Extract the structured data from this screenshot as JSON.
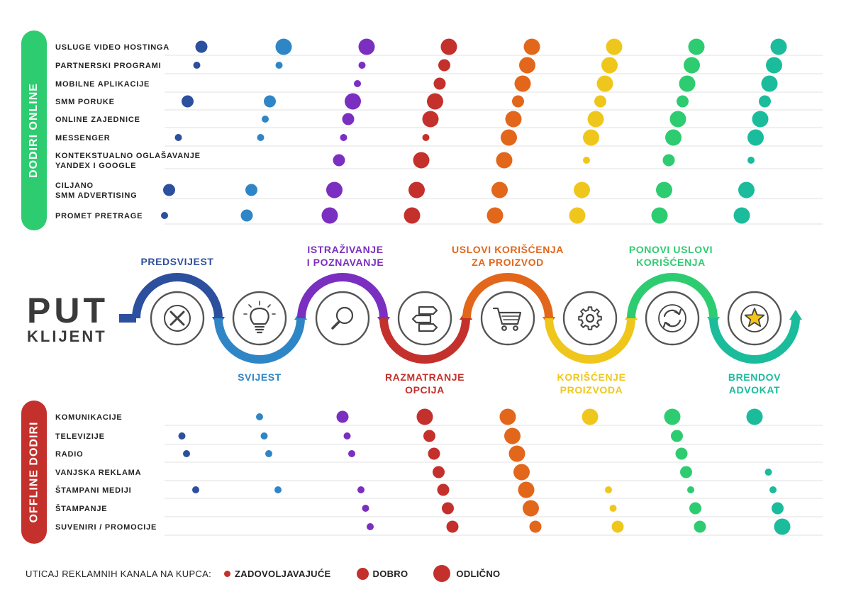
{
  "journey_title": {
    "big": "PUT",
    "small": "KLIJENT"
  },
  "online_section": {
    "title": "DODIRI ONLINE",
    "color": "#2ecc71"
  },
  "offline_section": {
    "title": "OFFLINE DODIRI",
    "color": "#c4302b"
  },
  "stages": [
    {
      "lines": [
        "PREDSVIJEST"
      ],
      "color": "#2c4f9e",
      "icon": "close-x-icon"
    },
    {
      "lines": [
        "SVIJEST"
      ],
      "color": "#2f86c6",
      "icon": "lightbulb-icon"
    },
    {
      "lines": [
        "ISTRAŽIVANJE",
        "I POZNAVANJE"
      ],
      "color": "#7b2fc0",
      "icon": "search-icon"
    },
    {
      "lines": [
        "RAZMATRANJE",
        "OPCIJA"
      ],
      "color": "#c4302b",
      "icon": "signpost-icon"
    },
    {
      "lines": [
        "USLOVI KORIŠĆENJA",
        "ZA PROIZVOD"
      ],
      "color": "#e2671b",
      "icon": "cart-icon"
    },
    {
      "lines": [
        "KORIŠĆENJE",
        "PROIZVODA"
      ],
      "color": "#efc71c",
      "icon": "gear-icon"
    },
    {
      "lines": [
        "PONOVI USLOVI",
        "KORIŠĆENJA"
      ],
      "color": "#2ecc71",
      "icon": "refresh-icon"
    },
    {
      "lines": [
        "BRENDOV",
        "ADVOKAT"
      ],
      "color": "#1abc9c",
      "icon": "star-icon"
    }
  ],
  "online_rows": [
    {
      "lines": [
        "USLUGE VIDEO HOSTINGA"
      ],
      "impact": [
        2,
        3,
        3,
        3,
        3,
        3,
        3,
        3
      ]
    },
    {
      "lines": [
        "PARTNERSKI PROGRAMI"
      ],
      "impact": [
        1,
        1,
        1,
        2,
        3,
        3,
        3,
        3
      ]
    },
    {
      "lines": [
        "MOBILNE APLIKACIJE"
      ],
      "impact": [
        0,
        0,
        1,
        2,
        3,
        3,
        3,
        3
      ]
    },
    {
      "lines": [
        "SMM PORUKE"
      ],
      "impact": [
        2,
        2,
        3,
        3,
        2,
        2,
        2,
        2
      ]
    },
    {
      "lines": [
        "ONLINE ZAJEDNICE"
      ],
      "impact": [
        0,
        1,
        2,
        3,
        3,
        3,
        3,
        3
      ]
    },
    {
      "lines": [
        "MESSENGER"
      ],
      "impact": [
        1,
        1,
        1,
        1,
        3,
        3,
        3,
        3
      ]
    },
    {
      "lines": [
        "KONTEKSTUALNO OGLAŠAVANJE",
        "YANDEX I GOOGLE"
      ],
      "impact": [
        0,
        0,
        2,
        3,
        3,
        1,
        2,
        1
      ]
    },
    {
      "lines": [
        "CILJANO",
        "SMM ADVERTISING"
      ],
      "impact": [
        2,
        2,
        3,
        3,
        3,
        3,
        3,
        3
      ]
    },
    {
      "lines": [
        "PROMET PRETRAGE"
      ],
      "impact": [
        1,
        2,
        3,
        3,
        3,
        3,
        3,
        3
      ]
    }
  ],
  "offline_rows": [
    {
      "lines": [
        "KOMUNIKACIJE"
      ],
      "impact": [
        0,
        1,
        2,
        3,
        3,
        3,
        3,
        3
      ]
    },
    {
      "lines": [
        "TELEVIZIJE"
      ],
      "impact": [
        1,
        1,
        1,
        2,
        3,
        0,
        2,
        0
      ]
    },
    {
      "lines": [
        "RADIO"
      ],
      "impact": [
        1,
        1,
        1,
        2,
        3,
        0,
        2,
        0
      ]
    },
    {
      "lines": [
        "VANJSKA REKLAMA"
      ],
      "impact": [
        0,
        0,
        0,
        2,
        3,
        0,
        2,
        1
      ]
    },
    {
      "lines": [
        "ŠTAMPANI MEDIJI"
      ],
      "impact": [
        1,
        1,
        1,
        2,
        3,
        1,
        1,
        1
      ]
    },
    {
      "lines": [
        "ŠTAMPANJE"
      ],
      "impact": [
        0,
        0,
        1,
        2,
        3,
        1,
        2,
        2
      ]
    },
    {
      "lines": [
        "SUVENIRI / PROMOCIJE"
      ],
      "impact": [
        0,
        0,
        1,
        2,
        2,
        2,
        2,
        3
      ]
    }
  ],
  "legend": {
    "title": "UTICAJ REKLAMNIH KANALA NA KUPCA:",
    "levels": [
      {
        "label": "ZADOVOLJAVAJUĆE",
        "level": 1
      },
      {
        "label": "DOBRO",
        "level": 2
      },
      {
        "label": "ODLIČNO",
        "level": 3
      }
    ],
    "color": "#c4302b"
  },
  "line_color": "#e8e8e8",
  "icon_stroke": "#444444"
}
